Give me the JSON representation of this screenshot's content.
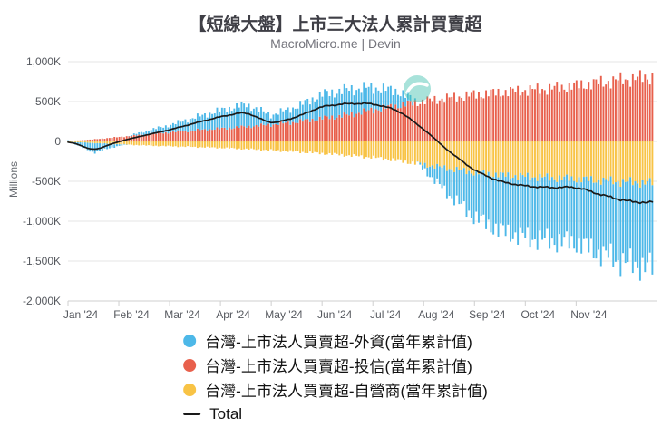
{
  "title": "【短線大盤】上市三大法人累計買賣超",
  "subtitle": "MacroMicro.me | Devin",
  "legend": {
    "items": [
      "台灣-上市法人買賣超-外資(當年累計值)",
      "台灣-上市法人買賣超-投信(當年累計值)",
      "台灣-上市法人買賣超-自營商(當年累計值)",
      "Total"
    ]
  },
  "icons": {
    "watermark": "macromicro-logo"
  },
  "chart_data": {
    "type": "bar",
    "stacked": true,
    "title": "【短線大盤】上市三大法人累計買賣超",
    "subtitle": "MacroMicro.me | Devin",
    "xlabel": "",
    "ylabel": "Millions",
    "value_unit": "K (thousands of millions), cumulative year-to-date",
    "ylim": [
      -2000,
      1000
    ],
    "ytick_values": [
      1000,
      500,
      0,
      -500,
      -1000,
      -1500,
      -2000
    ],
    "ytick_labels": [
      "1,000K",
      "500K",
      "0",
      "-500K",
      "-1,000K",
      "-1,500K",
      "-2,000K"
    ],
    "x_ticks": [
      "Jan '24",
      "Feb '24",
      "Mar '24",
      "Apr '24",
      "May '24",
      "Jun '24",
      "Jul '24",
      "Aug '24",
      "Sep '24",
      "Oct '24",
      "Nov '24"
    ],
    "x_range": [
      0,
      11.6
    ],
    "bar_t_max": 11.5,
    "bars": 240,
    "grid": true,
    "legend_position": "bottom",
    "anchors_t": [
      0,
      0.5,
      1,
      1.5,
      2,
      2.5,
      3,
      3.5,
      4,
      4.5,
      5,
      5.5,
      6,
      6.5,
      7,
      7.5,
      8,
      8.5,
      9,
      9.5,
      10,
      10.5,
      11,
      11.5
    ],
    "series": [
      {
        "name": "台灣-上市法人買賣超-外資(當年累計值)",
        "color": "#4db8e8",
        "values": [
          10,
          -120,
          -20,
          40,
          90,
          160,
          230,
          280,
          120,
          190,
          300,
          320,
          280,
          180,
          -60,
          -330,
          -560,
          -700,
          -760,
          -790,
          -800,
          -920,
          -1020,
          -1060
        ]
      },
      {
        "name": "台灣-上市法人買賣超-投信(當年累計值)",
        "color": "#e8604c",
        "values": [
          5,
          25,
          55,
          85,
          115,
          140,
          160,
          185,
          210,
          245,
          290,
          330,
          395,
          450,
          505,
          545,
          585,
          615,
          640,
          665,
          700,
          740,
          780,
          810
        ]
      },
      {
        "name": "台灣-上市法人買賣超-自營商(當年累計值)",
        "color": "#f8c345",
        "values": [
          -5,
          -20,
          -35,
          -50,
          -60,
          -70,
          -80,
          -95,
          -110,
          -130,
          -150,
          -175,
          -200,
          -240,
          -290,
          -340,
          -390,
          -420,
          -440,
          -455,
          -470,
          -490,
          -510,
          -520
        ]
      }
    ],
    "total": {
      "name": "Total",
      "color": "#1a1a1a"
    }
  }
}
